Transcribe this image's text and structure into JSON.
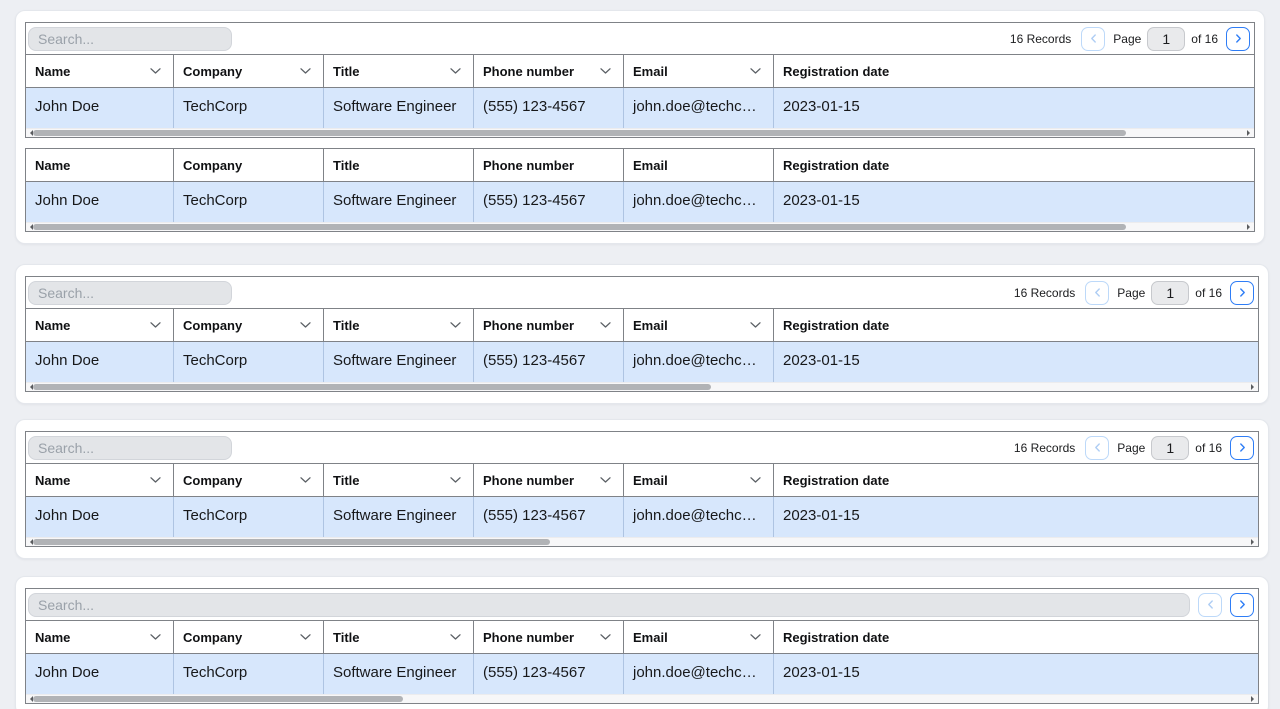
{
  "colors": {
    "page_background": "#edeff3",
    "accent_blue": "#2e7df6",
    "disabled_blue": "#aecdf4",
    "row_highlight": "#d7e7fc",
    "table_border": "#7f8287",
    "search_background": "#e3e5e8",
    "scrollbar_thumb": "#b1b3b6"
  },
  "search": {
    "placeholder": "Search..."
  },
  "pagination": {
    "records": "16 Records",
    "page_label": "Page",
    "page_value": "1",
    "of_label": "of 16",
    "prev_icon": "chevron-left",
    "next_icon": "chevron-right"
  },
  "columns": [
    {
      "label": "Name",
      "sortable": true,
      "sort_icon": "chevron-down"
    },
    {
      "label": "Company",
      "sortable": true,
      "sort_icon": "chevron-down"
    },
    {
      "label": "Title",
      "sortable": true,
      "sort_icon": "chevron-down"
    },
    {
      "label": "Phone number",
      "sortable": true,
      "sort_icon": "chevron-down"
    },
    {
      "label": "Email",
      "sortable": true,
      "sort_icon": "chevron-down"
    },
    {
      "label": "Registration date",
      "sortable": false
    }
  ],
  "row": {
    "name": "John Doe",
    "company": "TechCorp",
    "title": "Software Engineer",
    "phone": "(555) 123-4567",
    "email": "john.doe@techcorp.com",
    "registration_date": "2023-01-15"
  },
  "tables": [
    {
      "section": 1,
      "card": "shared",
      "toolbar": "full",
      "sortable": true,
      "thumb": 89
    },
    {
      "section": 1,
      "card": "shared",
      "toolbar": "none",
      "sortable": false,
      "thumb": 89
    },
    {
      "section": 2,
      "card": "own",
      "toolbar": "full",
      "sortable": true,
      "thumb": 55
    },
    {
      "section": 2,
      "card": "own",
      "toolbar": "full",
      "sortable": true,
      "thumb": 55
    },
    {
      "section": 3,
      "card": "own",
      "toolbar": "full",
      "sortable": true,
      "thumb": 42
    },
    {
      "section": 3,
      "card": "own",
      "toolbar": "full",
      "sortable": true,
      "thumb": 42
    },
    {
      "section": 3,
      "card": "own",
      "toolbar": "full",
      "sortable": true,
      "thumb": 42
    },
    {
      "section": 4,
      "card": "own",
      "toolbar": "buttons",
      "sortable": true,
      "thumb": 30
    },
    {
      "section": 4,
      "card": "own",
      "toolbar": "buttons",
      "sortable": true,
      "thumb": 30
    },
    {
      "section": 4,
      "card": "own",
      "toolbar": "buttons",
      "sortable": true,
      "thumb": 30
    },
    {
      "section": 4,
      "card": "own",
      "toolbar": "buttons",
      "sortable": true,
      "thumb": 30
    }
  ]
}
